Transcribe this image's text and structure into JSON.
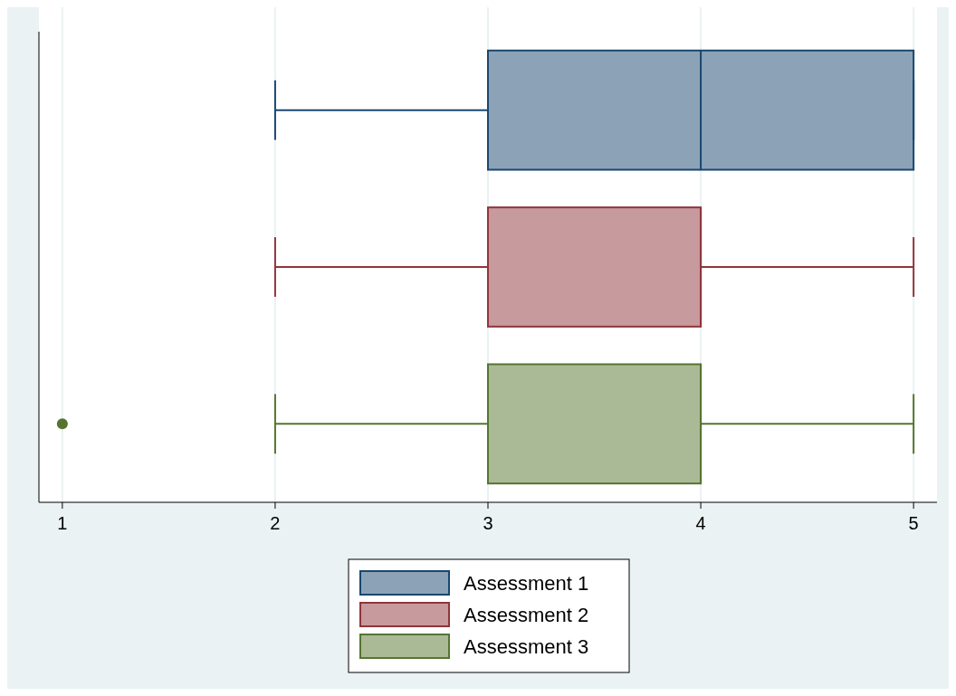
{
  "chart_data": {
    "type": "box",
    "orientation": "horizontal",
    "categories": [
      null
    ],
    "series": [
      {
        "name": "Assessment 1",
        "color": "#1a476f",
        "boxes": [
          {
            "low": 2,
            "q1": 3,
            "median": 4,
            "q3": 5,
            "high": 5
          }
        ]
      },
      {
        "name": "Assessment 2",
        "color": "#90353b",
        "boxes": [
          {
            "low": 2,
            "q1": 3,
            "median": 4,
            "q3": 4,
            "high": 5
          }
        ]
      },
      {
        "name": "Assessment 3",
        "color": "#55752f",
        "boxes": [
          {
            "low": 2,
            "q1": 3,
            "median": 4,
            "q3": 4,
            "high": 5,
            "outliers": [
              1
            ]
          }
        ]
      }
    ],
    "xlim": [
      0.89,
      5.11
    ],
    "xticks": [
      1,
      2,
      3,
      4,
      5
    ],
    "grid": "x",
    "legend": "bottom"
  }
}
